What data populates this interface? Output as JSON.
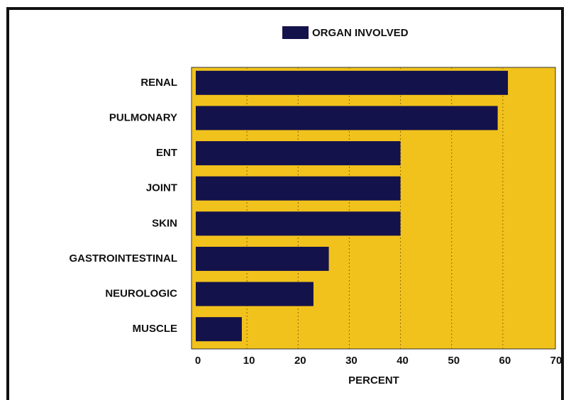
{
  "chart_data": {
    "type": "barh",
    "categories": [
      "RENAL",
      "PULMONARY",
      "ENT",
      "JOINT",
      "SKIN",
      "GASTROINTESTINAL",
      "NEUROLOGIC",
      "MUSCLE"
    ],
    "series": [
      {
        "name": "ORGAN INVOLVED",
        "color": "#14124a",
        "values": [
          61,
          59,
          40,
          40,
          40,
          26,
          23,
          9
        ]
      }
    ],
    "x_label": "PERCENT",
    "xlim": [
      0,
      70
    ],
    "xticks": [
      0,
      10,
      20,
      30,
      40,
      50,
      60,
      70
    ],
    "grid": true,
    "legend": "top",
    "background": "#f2c21c"
  }
}
